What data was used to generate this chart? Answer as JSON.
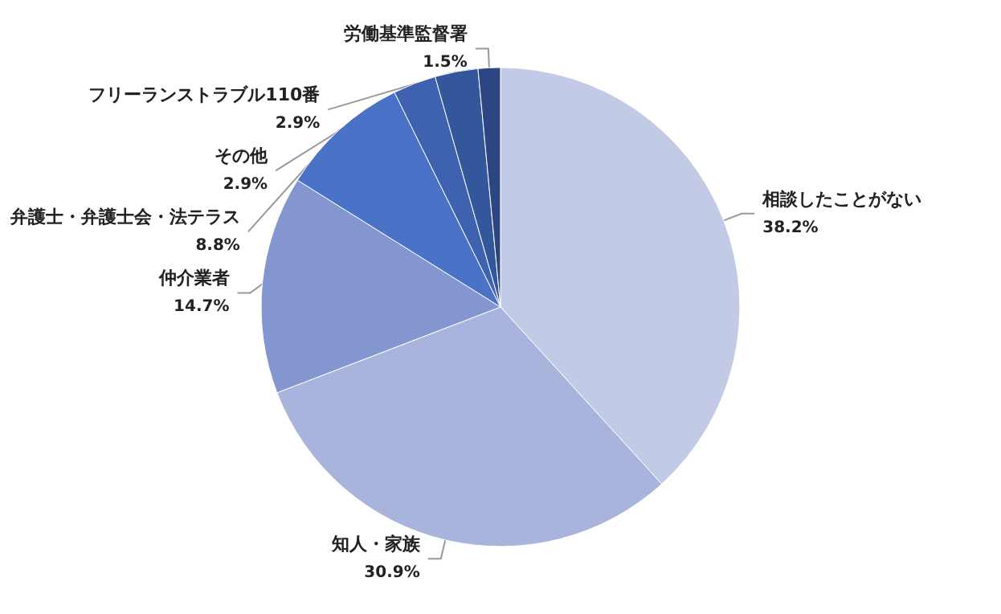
{
  "chart_data": {
    "type": "pie",
    "categories": [
      "相談したことがない",
      "知人・家族",
      "仲介業者",
      "弁護士・弁護士会・法テラス",
      "その他",
      "フリーランストラブル110番",
      "労働基準監督署"
    ],
    "values": [
      38.2,
      30.9,
      14.7,
      8.8,
      2.9,
      2.9,
      1.5
    ],
    "value_labels": [
      "38.2%",
      "30.9%",
      "14.7%",
      "8.8%",
      "2.9%",
      "2.9%",
      "1.5%"
    ],
    "colors": [
      "#c3cae6",
      "#a8b4dc",
      "#8396d0",
      "#4a73c8",
      "#3e62b0",
      "#34579c",
      "#2b4682"
    ],
    "legend": false
  }
}
